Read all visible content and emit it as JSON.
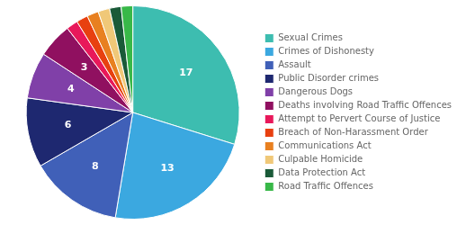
{
  "chart_data": {
    "type": "pie",
    "categories": [
      "Sexual Crimes",
      "Crimes of Dishonesty",
      "Assault",
      "Public Disorder crimes",
      "Dangerous Dogs",
      "Deaths involving Road Traffic Offences",
      "Attempt to Pervert Course of Justice",
      "Breach of Non-Harassment Order",
      "Communications Act",
      "Culpable Homicide",
      "Data Protection Act",
      "Road Traffic Offences"
    ],
    "values": [
      17,
      13,
      8,
      6,
      4,
      3,
      1,
      1,
      1,
      1,
      1,
      1
    ],
    "value_labels": [
      "17",
      "13",
      "8",
      "6",
      "4",
      "3",
      null,
      null,
      null,
      null,
      null,
      null
    ],
    "colors": [
      "#3DBDB0",
      "#3BA8E0",
      "#4060B8",
      "#1E2870",
      "#8040A8",
      "#901060",
      "#E8185A",
      "#E84010",
      "#E88020",
      "#F0C878",
      "#1A5A38",
      "#38B848"
    ],
    "data_labels": true,
    "legend": "right"
  }
}
